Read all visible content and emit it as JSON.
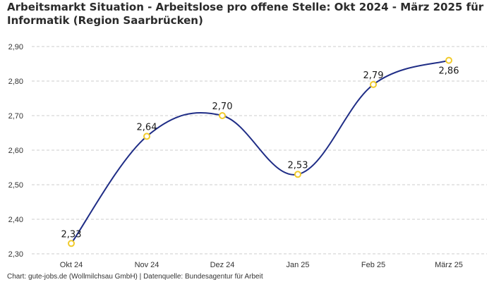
{
  "title": "Arbeitsmarkt Situation - Arbeitslose pro offene Stelle: Okt 2024 - März 2025 für Informatik (Region Saarbrücken)",
  "caption": {
    "source_chart": "Chart: gute-jobs.de (Wollmilchsau GmbH)",
    "separator": "|",
    "source_data": "Datenquelle: Bundesagentur für Arbeit"
  },
  "colors": {
    "line": "#1f2d86",
    "marker_stroke": "#f1cb2b",
    "marker_fill": "#ffffff",
    "grid": "#cccccc"
  },
  "chart_data": {
    "type": "line",
    "title": "Arbeitsmarkt Situation - Arbeitslose pro offene Stelle: Okt 2024 - März 2025 für Informatik (Region Saarbrücken)",
    "xlabel": "",
    "ylabel": "",
    "categories": [
      "Okt 24",
      "Nov 24",
      "Dez 24",
      "Jan 25",
      "Feb 25",
      "März 25"
    ],
    "values": [
      2.33,
      2.64,
      2.7,
      2.53,
      2.79,
      2.86
    ],
    "data_labels": [
      "2,33",
      "2,64",
      "2,70",
      "2,53",
      "2,79",
      "2,86"
    ],
    "label_position": [
      "above",
      "above",
      "above",
      "above",
      "above",
      "below"
    ],
    "ylim": [
      2.3,
      2.9
    ],
    "yticks": [
      2.3,
      2.4,
      2.5,
      2.6,
      2.7,
      2.8,
      2.9
    ],
    "ytick_labels": [
      "2,30",
      "2,40",
      "2,50",
      "2,60",
      "2,70",
      "2,80",
      "2,90"
    ],
    "grid": "horizontal-dashed",
    "curve": "smooth",
    "legend": "none"
  }
}
